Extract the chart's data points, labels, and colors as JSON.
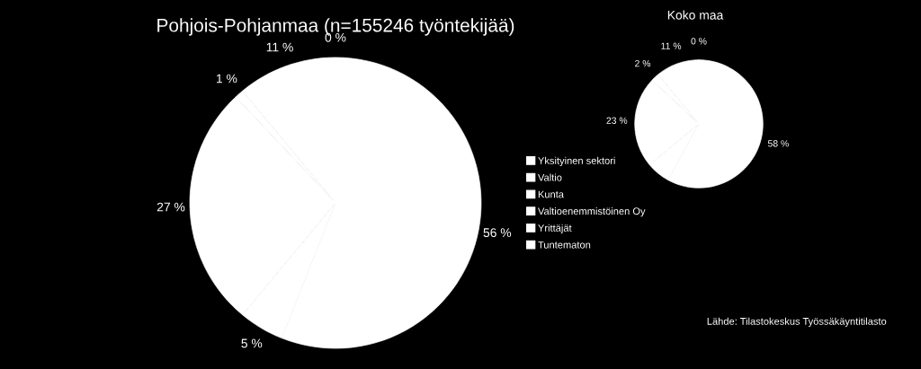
{
  "chart_data": [
    {
      "type": "pie",
      "title": "Pohjois-Pohjanmaa (n=155246 työntekijää)",
      "categories": [
        "Yksityinen sektori",
        "Valtio",
        "Kunta",
        "Valtioenemmistöinen Oy",
        "Yrittäjät",
        "Tuntematon"
      ],
      "values": [
        56,
        5,
        27,
        1,
        11,
        0
      ],
      "colors": [
        "#ffffff",
        "#ffffff",
        "#ffffff",
        "#ffffff",
        "#ffffff",
        "#ffffff"
      ],
      "value_labels": [
        "56 %",
        "5 %",
        "27 %",
        "1 %",
        "11 %",
        "0 %"
      ],
      "legend": "right"
    },
    {
      "type": "pie",
      "title": "Koko maa",
      "categories": [
        null,
        null,
        null,
        null,
        null,
        null
      ],
      "values": [
        58,
        6,
        23,
        2,
        11,
        0
      ],
      "colors": [
        "#ffffff",
        "#ffffff",
        "#ffffff",
        "#ffffff",
        "#ffffff",
        "#ffffff"
      ],
      "value_labels": [
        "58 %",
        null,
        "23 %",
        "2 %",
        "11 %",
        "0 %"
      ],
      "annotations": [
        "Lähde: Tilastokeskus Työssäkäyntitilasto"
      ]
    }
  ]
}
